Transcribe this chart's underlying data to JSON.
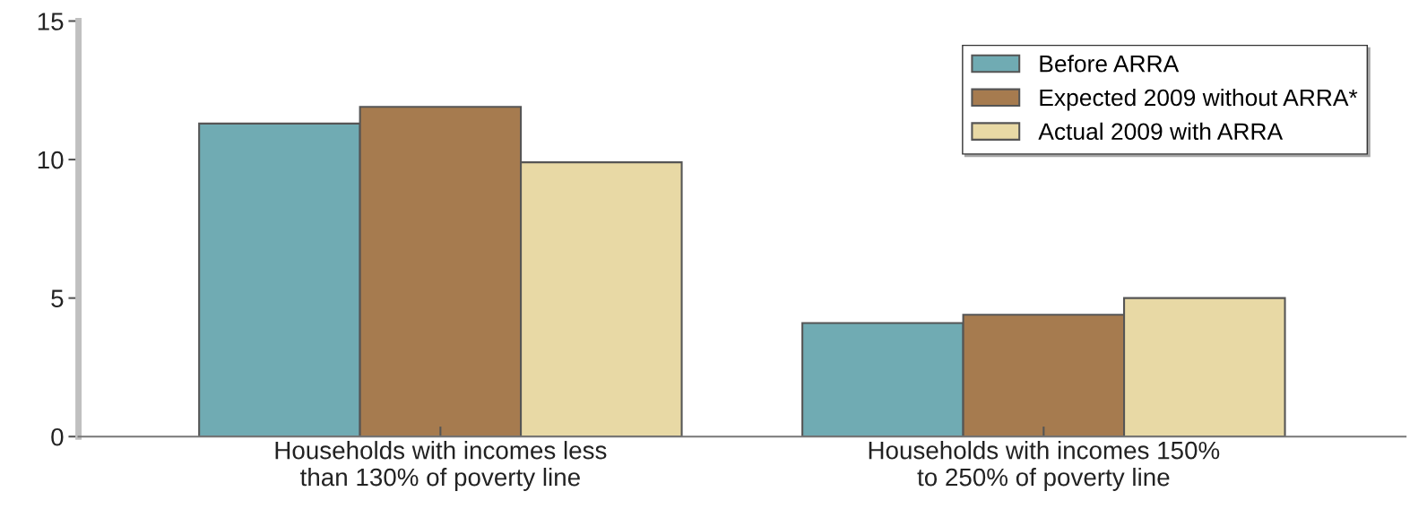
{
  "chart_data": {
    "type": "bar",
    "categories": [
      "Households with incomes less\nthan 130% of poverty line",
      "Households with incomes 150%\nto 250% of poverty line"
    ],
    "series": [
      {
        "name": "Before ARRA",
        "color": "#70abb3",
        "values": [
          11.3,
          4.1
        ]
      },
      {
        "name": "Expected 2009 without ARRA*",
        "color": "#a67b4f",
        "values": [
          11.9,
          4.4
        ]
      },
      {
        "name": "Actual 2009 with ARRA",
        "color": "#e8d9a5",
        "values": [
          9.9,
          5.0
        ]
      }
    ],
    "ylim": [
      0,
      15
    ],
    "yticks": [
      0,
      5,
      10,
      15
    ],
    "grid": false,
    "legend": "top right"
  }
}
